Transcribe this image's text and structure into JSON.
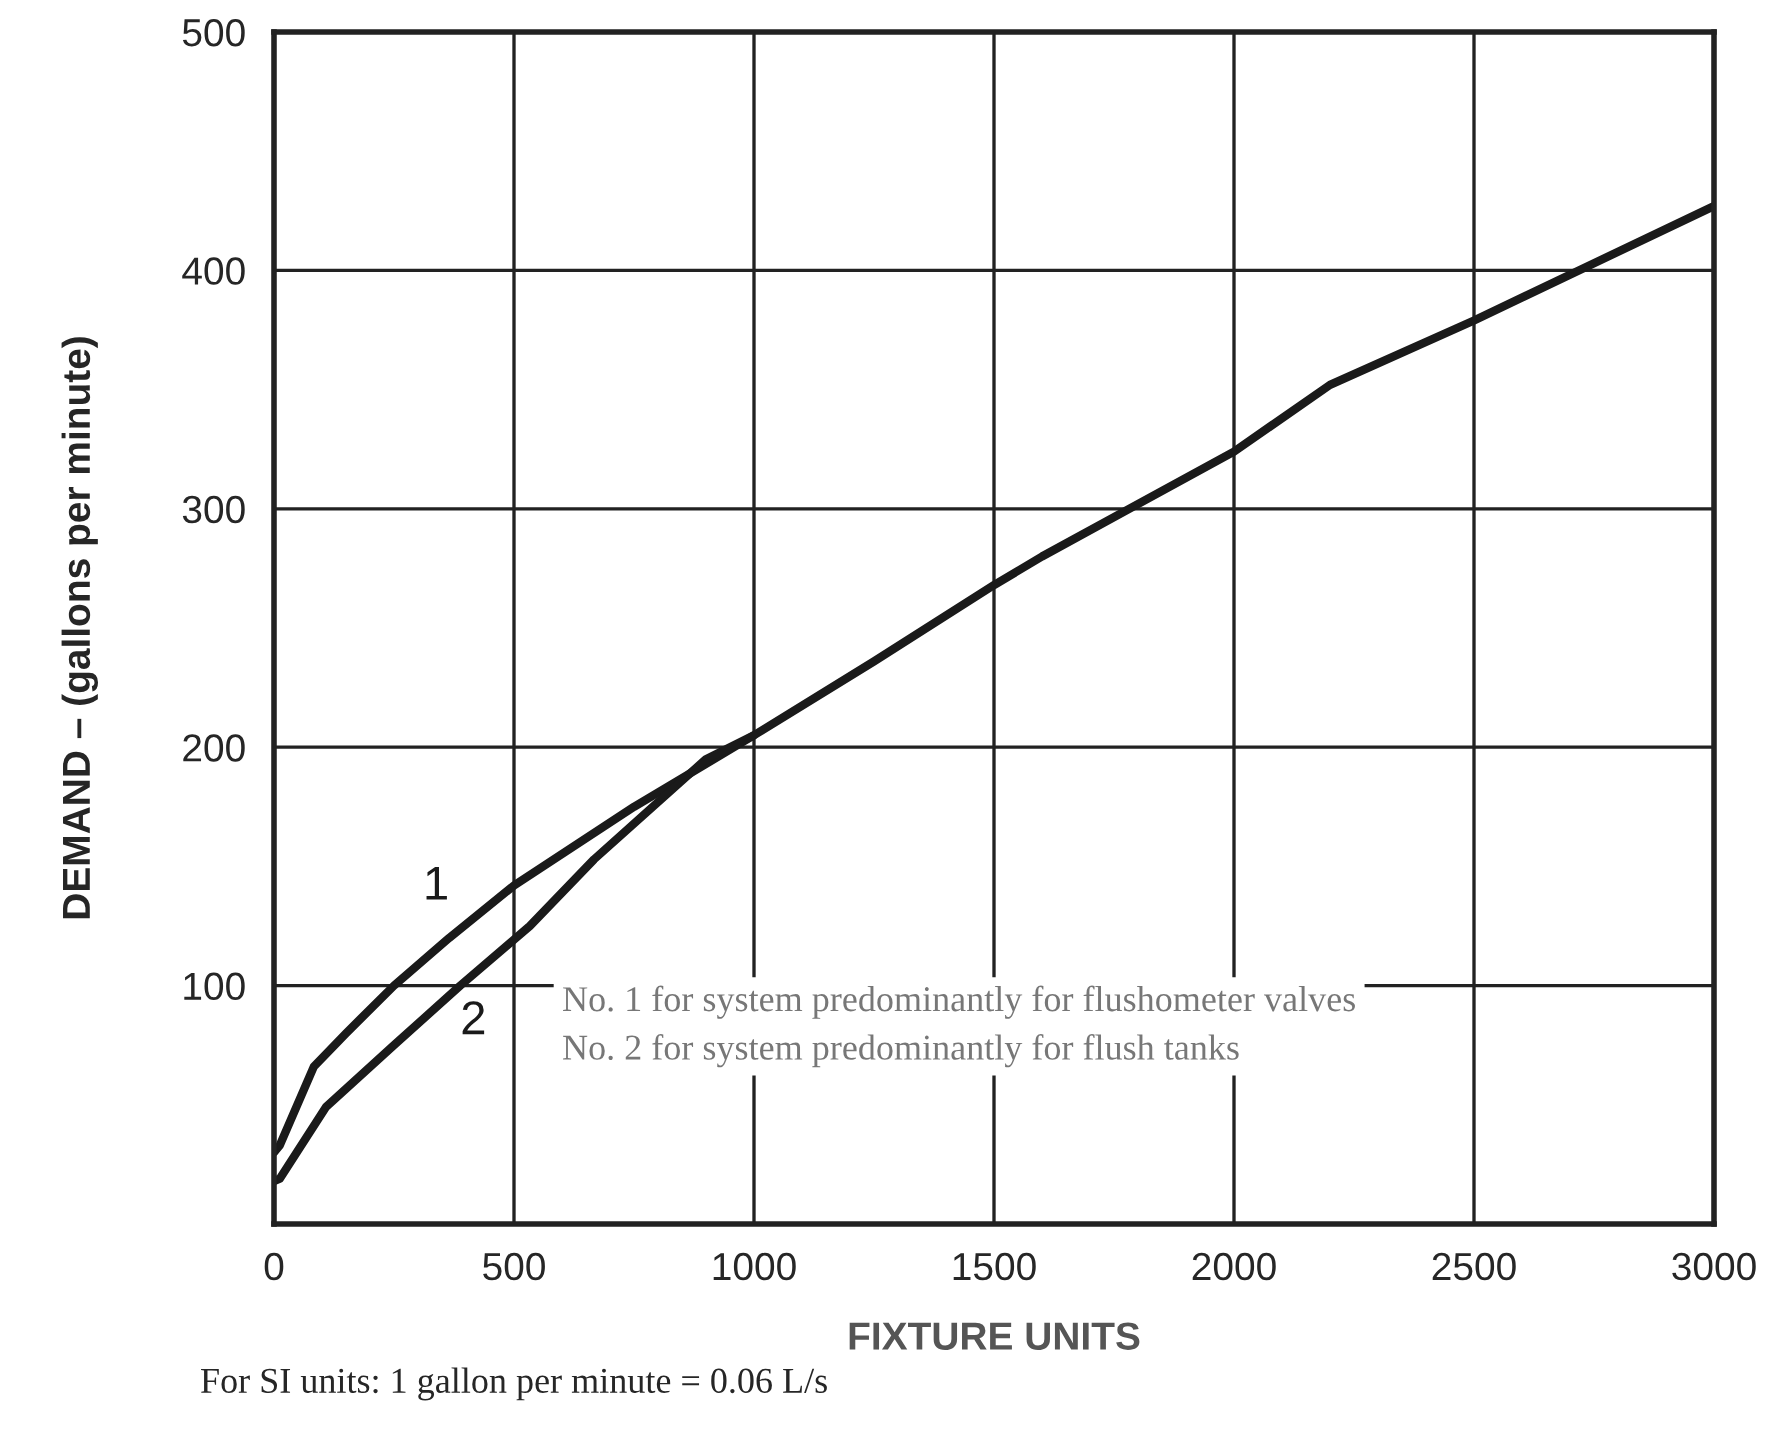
{
  "chart_data": {
    "type": "line",
    "xlabel": "FIXTURE UNITS",
    "ylabel": "DEMAND – (gallons per minute)",
    "series": [
      {
        "name": "1",
        "color": "#1a1a1a",
        "x": [
          0,
          12,
          83,
          150,
          250,
          365,
          500,
          750,
          1000,
          1250,
          1500,
          1600,
          2000,
          2200,
          2500,
          3000
        ],
        "values": [
          30,
          33,
          66,
          80,
          100,
          120,
          142,
          175,
          205,
          236,
          268,
          280,
          324,
          352,
          379,
          427
        ]
      },
      {
        "name": "2",
        "color": "#1a1a1a",
        "x": [
          0,
          12,
          108,
          250,
          388,
          533,
          667,
          900,
          1000
        ],
        "values": [
          18,
          19,
          49,
          75,
          100,
          125,
          153,
          195,
          205
        ]
      }
    ],
    "xlim": [
      0,
      3000
    ],
    "ylim": [
      0,
      500
    ],
    "xticks": [
      0,
      500,
      1000,
      1500,
      2000,
      2500,
      3000
    ],
    "yticks": [
      100,
      200,
      300,
      400,
      500
    ],
    "grid": true,
    "marker": "none",
    "line_style": "solid",
    "legend": false,
    "annotations": [
      "No. 1 for system predominantly for flushometer valves\nNo. 2 for system predominantly for flush tanks",
      "For SI units: 1 gallon per minute = 0.06 L/s"
    ]
  }
}
